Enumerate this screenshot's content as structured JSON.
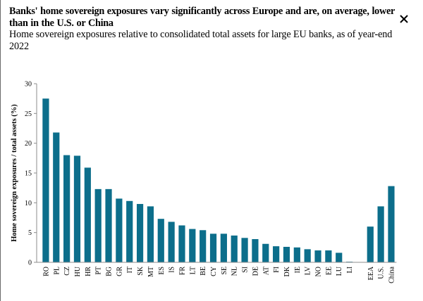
{
  "header": {
    "title": "Banks' home sovereign exposures vary significantly across Europe and are, on average, lower than in the U.S. or China",
    "subtitle": "Home sovereign exposures relative to consolidated total assets for large EU banks, as of year-end 2022",
    "close_icon": "close-icon"
  },
  "colors": {
    "bar": "#0c6e8b",
    "axis": "#8c8c8c",
    "text": "#000000"
  },
  "chart_data": {
    "type": "bar",
    "title": "",
    "xlabel": "",
    "ylabel": "Home sovereign exposures / total assets (%)",
    "ylim": [
      0,
      30
    ],
    "yticks": [
      0,
      5,
      10,
      15,
      20,
      25,
      30
    ],
    "grid": false,
    "legend": false,
    "categories": [
      "RO",
      "PL",
      "CZ",
      "HU",
      "HR",
      "PT",
      "BG",
      "GR",
      "IT",
      "SK",
      "MT",
      "ES",
      "IS",
      "FR",
      "LT",
      "BE",
      "CY",
      "SE",
      "NL",
      "SI",
      "DE",
      "AT",
      "FI",
      "DK",
      "IE",
      "LV",
      "NO",
      "EE",
      "LU",
      "LI",
      "",
      "EEA",
      "U.S.",
      "China"
    ],
    "values": [
      27.5,
      21.8,
      18.0,
      17.9,
      15.9,
      12.3,
      12.3,
      10.7,
      10.3,
      9.8,
      9.4,
      7.3,
      6.8,
      6.2,
      5.6,
      5.4,
      4.8,
      4.8,
      4.5,
      4.1,
      3.9,
      3.1,
      2.7,
      2.6,
      2.5,
      2.2,
      2.0,
      2.0,
      1.6,
      0.1,
      null,
      6.0,
      9.4,
      12.8
    ]
  }
}
